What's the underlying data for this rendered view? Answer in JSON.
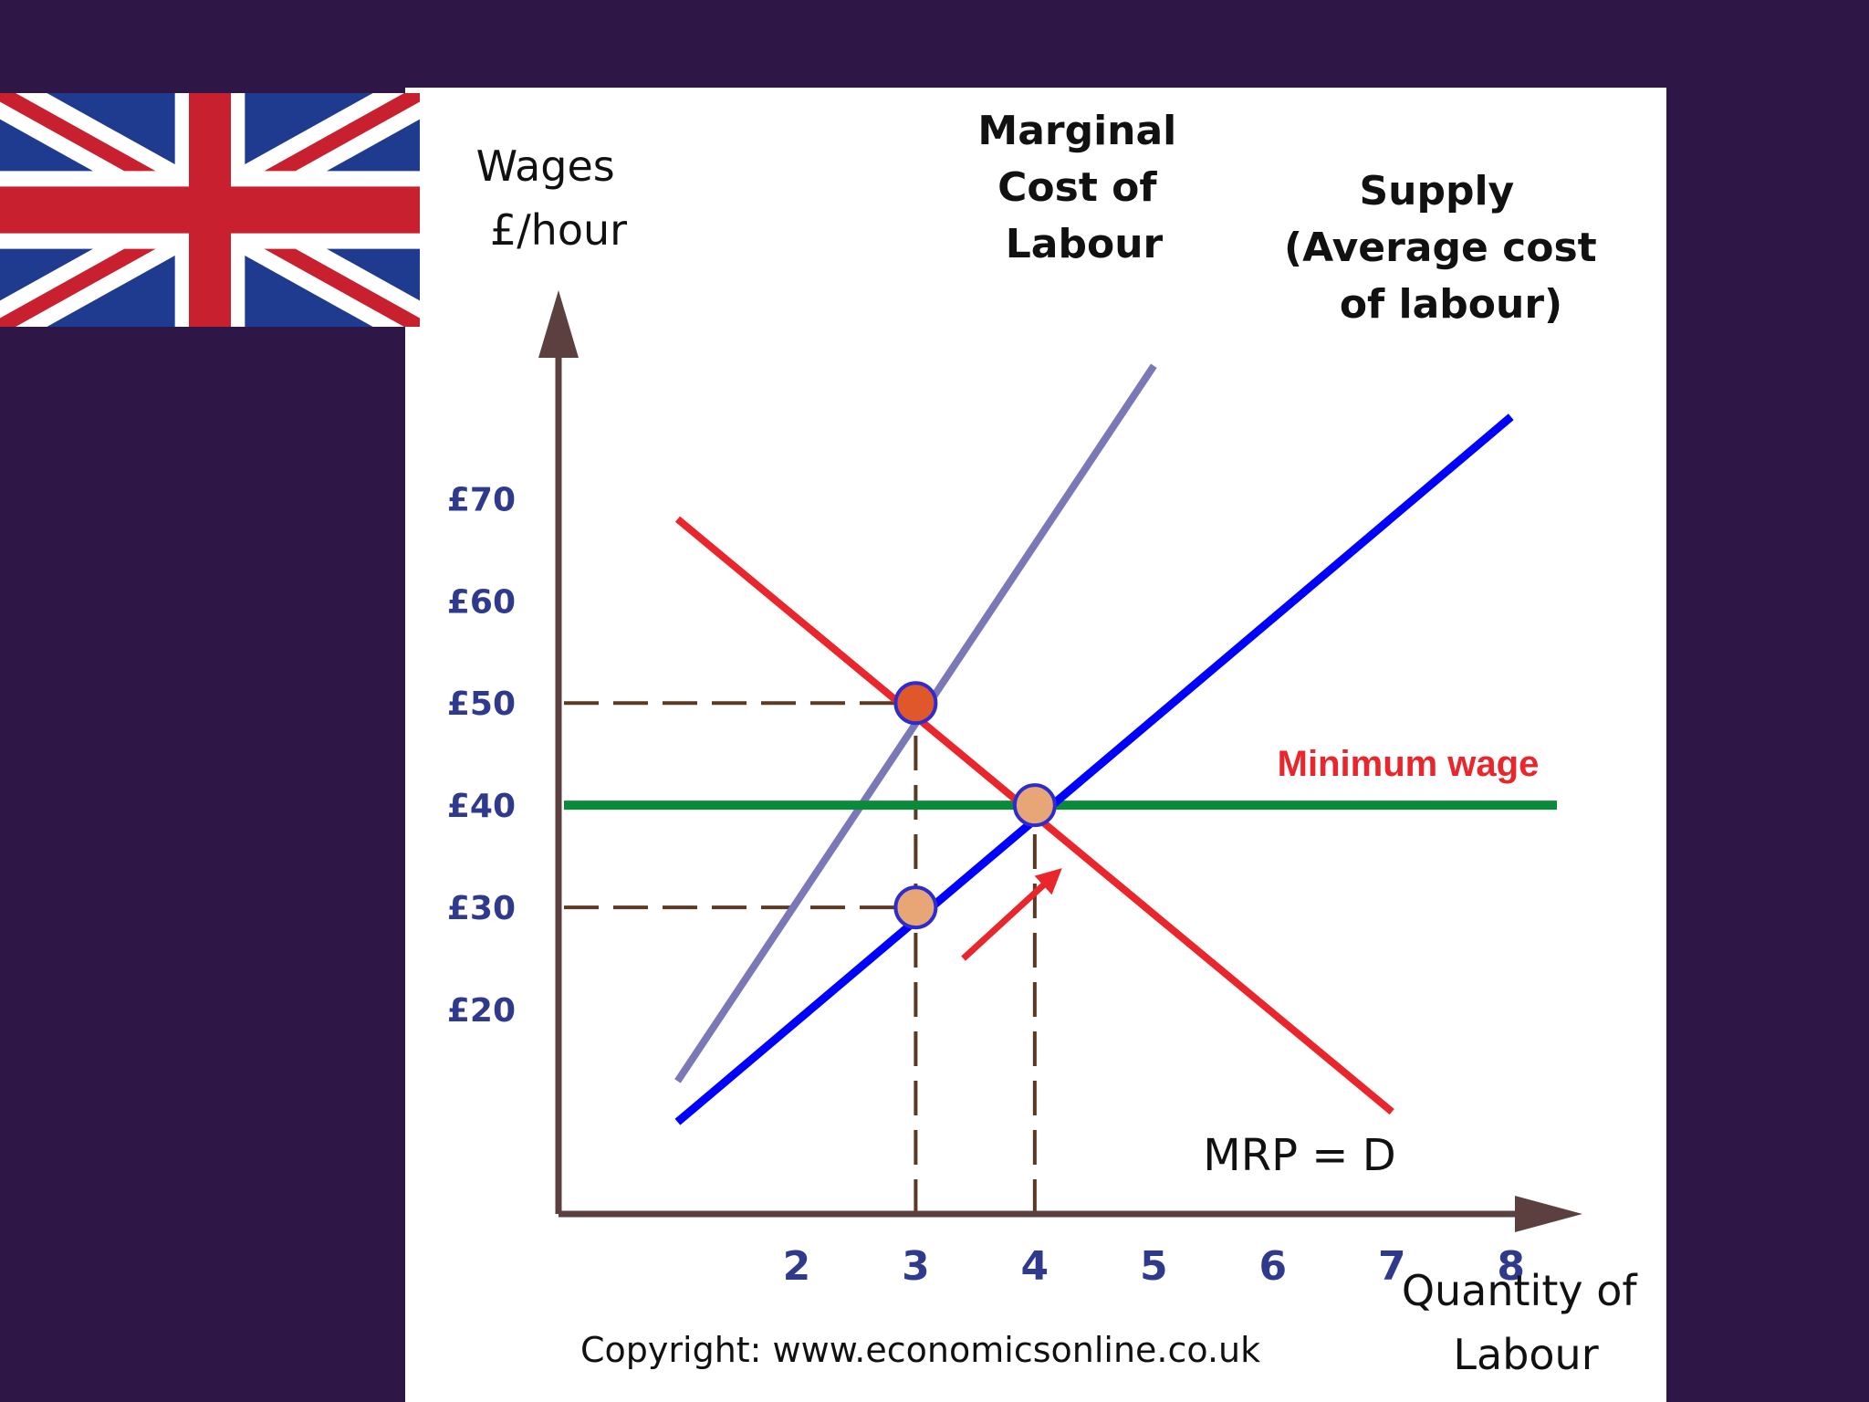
{
  "colors": {
    "background": "#2e1646",
    "panel": "#ffffff",
    "axis": "#5c4040",
    "ticks": "#2f3a8c",
    "mrp": "#e8262c",
    "supply": "#0000ff",
    "mcl": "#7b78b8",
    "minimum_wage": "#0a8a3a",
    "minimum_wage_label": "#e8262c",
    "point_monopsony": "#e0582a",
    "point_other": "#e8a676",
    "guide": "#5a3a22"
  },
  "flag": {
    "icon": "union-jack-flag"
  },
  "chart_data": {
    "type": "line",
    "ylabel_lines": [
      "Wages",
      "£/hour"
    ],
    "xlabel_lines": [
      "Quantity of",
      "Labour"
    ],
    "xlim": [
      0,
      8.6
    ],
    "ylim": [
      0,
      92
    ],
    "y_ticks": [
      20,
      30,
      40,
      50,
      60,
      70
    ],
    "y_tick_labels": [
      "£20",
      "£30",
      "£40",
      "£50",
      "£60",
      "£70"
    ],
    "x_ticks": [
      2,
      3,
      4,
      5,
      6,
      7,
      8
    ],
    "x_tick_labels": [
      "2",
      "3",
      "4",
      "5",
      "6",
      "7",
      "8"
    ],
    "series": [
      {
        "key": "mcl",
        "name_lines": [
          "Marginal",
          "Cost of",
          "Labour"
        ],
        "points": [
          [
            1,
            13
          ],
          [
            5,
            83
          ]
        ]
      },
      {
        "key": "supply",
        "name_lines": [
          "Supply",
          "(Average cost",
          "of labour)"
        ],
        "points": [
          [
            1,
            9
          ],
          [
            8,
            78
          ]
        ]
      },
      {
        "key": "mrp",
        "name_lines": [
          "MRP = D"
        ],
        "points": [
          [
            1,
            68
          ],
          [
            7,
            10
          ]
        ]
      }
    ],
    "minimum_wage": {
      "label": "Minimum wage",
      "value": 40,
      "x_range": [
        0,
        10
      ]
    },
    "points": [
      {
        "key": "monopsony_wage",
        "x": 3,
        "y": 50
      },
      {
        "key": "monopsony_supply",
        "x": 3,
        "y": 30
      },
      {
        "key": "minimum_wage_equilibrium",
        "x": 4,
        "y": 40
      }
    ],
    "guides": [
      {
        "from": [
          0,
          50
        ],
        "to": [
          3,
          50
        ]
      },
      {
        "from": [
          0,
          30
        ],
        "to": [
          3,
          30
        ]
      },
      {
        "from": [
          0,
          40
        ],
        "to": [
          4,
          40
        ]
      },
      {
        "from": [
          3,
          0
        ],
        "to": [
          3,
          50
        ]
      },
      {
        "from": [
          4,
          0
        ],
        "to": [
          4,
          40
        ]
      }
    ],
    "arrow": {
      "from": [
        3.4,
        25
      ],
      "to": [
        4.15,
        33
      ]
    },
    "copyright": "Copyright: www.economicsonline.co.uk"
  }
}
